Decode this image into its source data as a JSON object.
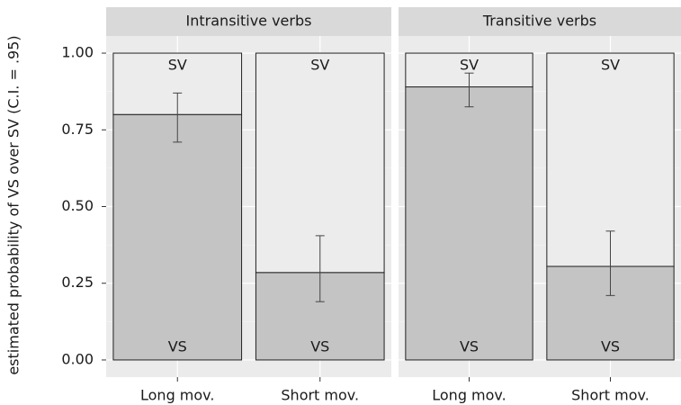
{
  "chart_data": {
    "type": "bar",
    "ylabel": "estimated probability of VS over SV (C.I. = .95)",
    "ylim": [
      -0.05,
      1.05
    ],
    "yticks": [
      {
        "value": 0,
        "label": "0.00"
      },
      {
        "value": 0.25,
        "label": "0.25"
      },
      {
        "value": 0.5,
        "label": "0.50"
      },
      {
        "value": 0.75,
        "label": "0.75"
      },
      {
        "value": 1,
        "label": "1.00"
      }
    ],
    "grid": true,
    "panels": [
      {
        "title": "Intransitive verbs",
        "categories": [
          "Long mov.",
          "Short mov."
        ],
        "series": [
          {
            "name": "VS",
            "color": "#c4c4c4",
            "values": [
              0.8,
              0.285
            ]
          },
          {
            "name": "SV",
            "color": "#ececec",
            "values": [
              0.2,
              0.715
            ]
          }
        ],
        "ci_low": [
          0.71,
          0.19
        ],
        "ci_high": [
          0.87,
          0.405
        ]
      },
      {
        "title": "Transitive verbs",
        "categories": [
          "Long mov.",
          "Short mov."
        ],
        "series": [
          {
            "name": "VS",
            "color": "#c4c4c4",
            "values": [
              0.89,
              0.305
            ]
          },
          {
            "name": "SV",
            "color": "#ececec",
            "values": [
              0.11,
              0.695
            ]
          }
        ],
        "ci_low": [
          0.825,
          0.21
        ],
        "ci_high": [
          0.935,
          0.42
        ]
      }
    ]
  }
}
